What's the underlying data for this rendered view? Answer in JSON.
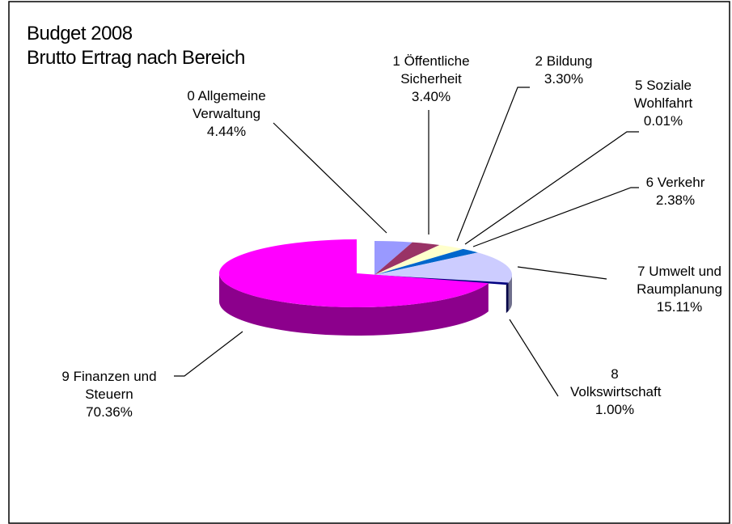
{
  "chart_data": {
    "type": "pie",
    "title": "Budget 2008",
    "subtitle": "Brutto Ertrag nach Bereich",
    "categories": [
      "0 Allgemeine Verwaltung",
      "1 Öffentliche Sicherheit",
      "2 Bildung",
      "5 Soziale Wohlfahrt",
      "6 Verkehr",
      "7 Umwelt und Raumplanung",
      "8 Volkswirtschaft",
      "9 Finanzen und Steuern"
    ],
    "values": [
      4.44,
      3.4,
      3.3,
      0.01,
      2.38,
      15.11,
      1.0,
      70.36
    ],
    "value_labels": [
      "4.44%",
      "3.40%",
      "3.30%",
      "0.01%",
      "2.38%",
      "15.11%",
      "1.00%",
      "70.36%"
    ],
    "colors": [
      "#9999ff",
      "#993366",
      "#ffffcc",
      "#ccffff",
      "#0066cc",
      "#ccccff",
      "#000080",
      "#ff00ff"
    ]
  }
}
